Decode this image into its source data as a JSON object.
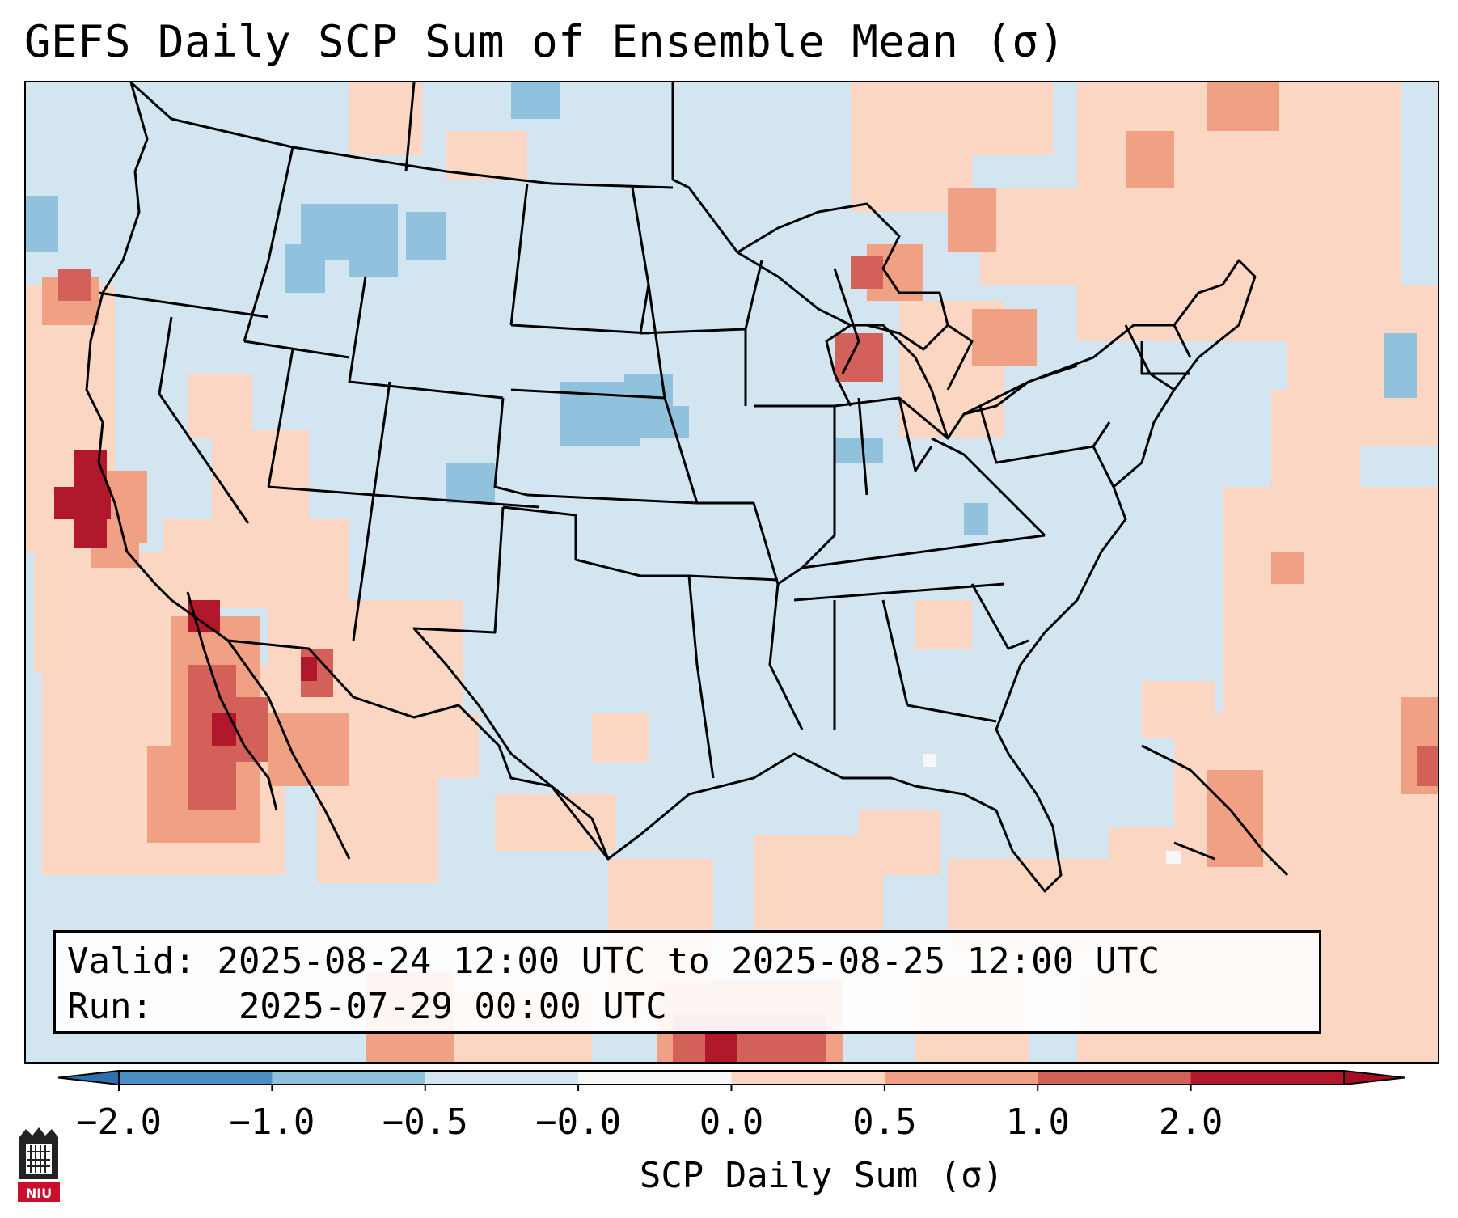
{
  "title": "GEFS Daily SCP Sum of Ensemble Mean (σ)",
  "info": {
    "valid_label": "Valid:",
    "valid_text": "2025-08-24 12:00 UTC to 2025-08-25 12:00 UTC",
    "run_label": "Run:",
    "run_text": "2025-07-29 00:00 UTC"
  },
  "colorbar": {
    "label": "SCP Daily Sum (σ)",
    "ticks": [
      "−2.0",
      "−1.0",
      "−0.5",
      "−0.0",
      "0.0",
      "0.5",
      "1.0",
      "2.0"
    ],
    "colors": [
      "#4a8fc5",
      "#90c2dd",
      "#d2e5f1",
      "#f7f7f7",
      "#fbd7c3",
      "#f0a184",
      "#d4605a",
      "#b2182b"
    ],
    "under_color": "#2e6fad",
    "over_color": "#a50f26"
  },
  "logo": {
    "text": "NIU"
  },
  "colors": {
    "neg_mid": "#90c2dd",
    "neg_low": "#d2e5f1",
    "pos_low": "#fbd7c3",
    "pos_mid": "#f0a184",
    "pos_high": "#d4605a",
    "pos_max": "#b2182b"
  }
}
